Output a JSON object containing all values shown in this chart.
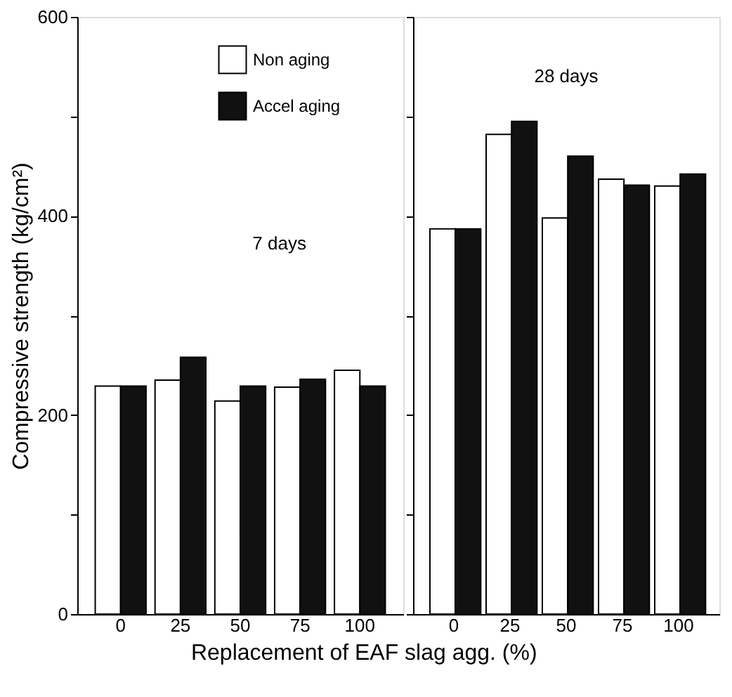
{
  "chart_data": [
    {
      "type": "bar",
      "ylabel": "Compressive strength (kg/cm²)",
      "xlabel": "Replacement of EAF slag agg. (%)",
      "categories": [
        "0",
        "25",
        "50",
        "75",
        "100"
      ],
      "series": [
        {
          "name": "Non aging",
          "color": "#ffffff",
          "values": [
            229,
            235,
            214,
            228,
            245
          ]
        },
        {
          "name": "Accel aging",
          "color": "#111111",
          "values": [
            229,
            258,
            229,
            236,
            229
          ]
        }
      ],
      "ylim": [
        0,
        600
      ],
      "yticks": [
        0,
        {
          "value": 100,
          "label": null
        },
        200,
        {
          "value": 300,
          "label": null
        },
        400,
        {
          "value": 500,
          "label": null
        },
        600
      ],
      "annotations": [
        "7 days"
      ],
      "legend": "top right",
      "grid": false
    },
    {
      "type": "bar",
      "categories": [
        "0",
        "25",
        "50",
        "75",
        "100"
      ],
      "series": [
        {
          "name": "Non aging",
          "color": "#ffffff",
          "values": [
            387,
            482,
            398,
            437,
            430
          ]
        },
        {
          "name": "Accel aging",
          "color": "#111111",
          "values": [
            387,
            495,
            460,
            431,
            442
          ]
        }
      ],
      "ylim": [
        0,
        600
      ],
      "yticks": [
        0,
        {
          "value": 100,
          "label": null
        },
        200,
        {
          "value": 300,
          "label": null
        },
        400,
        {
          "value": 500,
          "label": null
        },
        600
      ],
      "annotations": [
        "28 days"
      ],
      "tick_labels": "x",
      "grid": false
    }
  ]
}
